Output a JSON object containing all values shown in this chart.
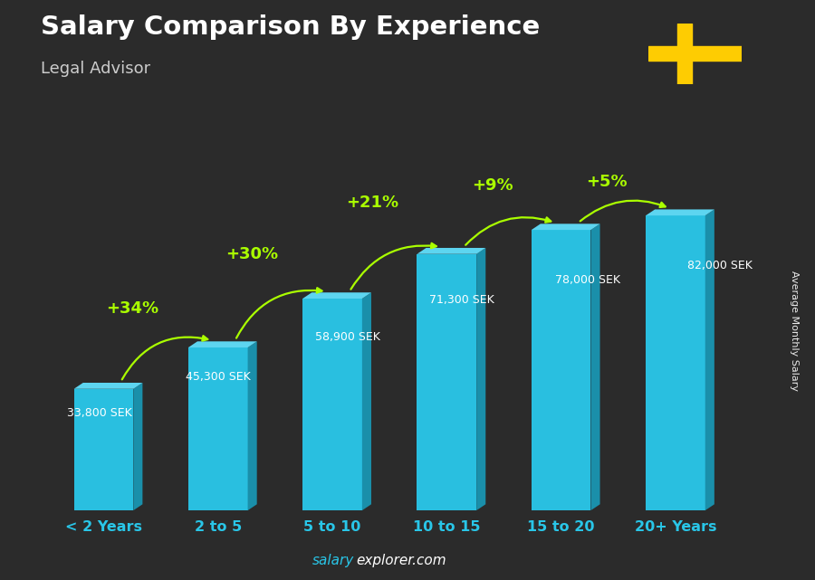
{
  "title": "Salary Comparison By Experience",
  "subtitle": "Legal Advisor",
  "ylabel": "Average Monthly Salary",
  "categories": [
    "< 2 Years",
    "2 to 5",
    "5 to 10",
    "10 to 15",
    "15 to 20",
    "20+ Years"
  ],
  "values": [
    33800,
    45300,
    58900,
    71300,
    78000,
    82000
  ],
  "labels": [
    "33,800 SEK",
    "45,300 SEK",
    "58,900 SEK",
    "71,300 SEK",
    "78,000 SEK",
    "82,000 SEK"
  ],
  "pct_labels": [
    "+34%",
    "+30%",
    "+21%",
    "+9%",
    "+5%"
  ],
  "bar_color_face": "#29BFE0",
  "bar_color_side": "#1A8FAA",
  "bar_color_top": "#5DD5F0",
  "bg_color": "#2b2b2b",
  "title_color": "#ffffff",
  "subtitle_color": "#cccccc",
  "label_color": "#ffffff",
  "pct_color": "#aaff00",
  "tick_color": "#29C6E8",
  "watermark_color1": "#29C6E8",
  "watermark_color2": "#ffffff",
  "ylim": [
    0,
    100000
  ],
  "bar_width": 0.52
}
